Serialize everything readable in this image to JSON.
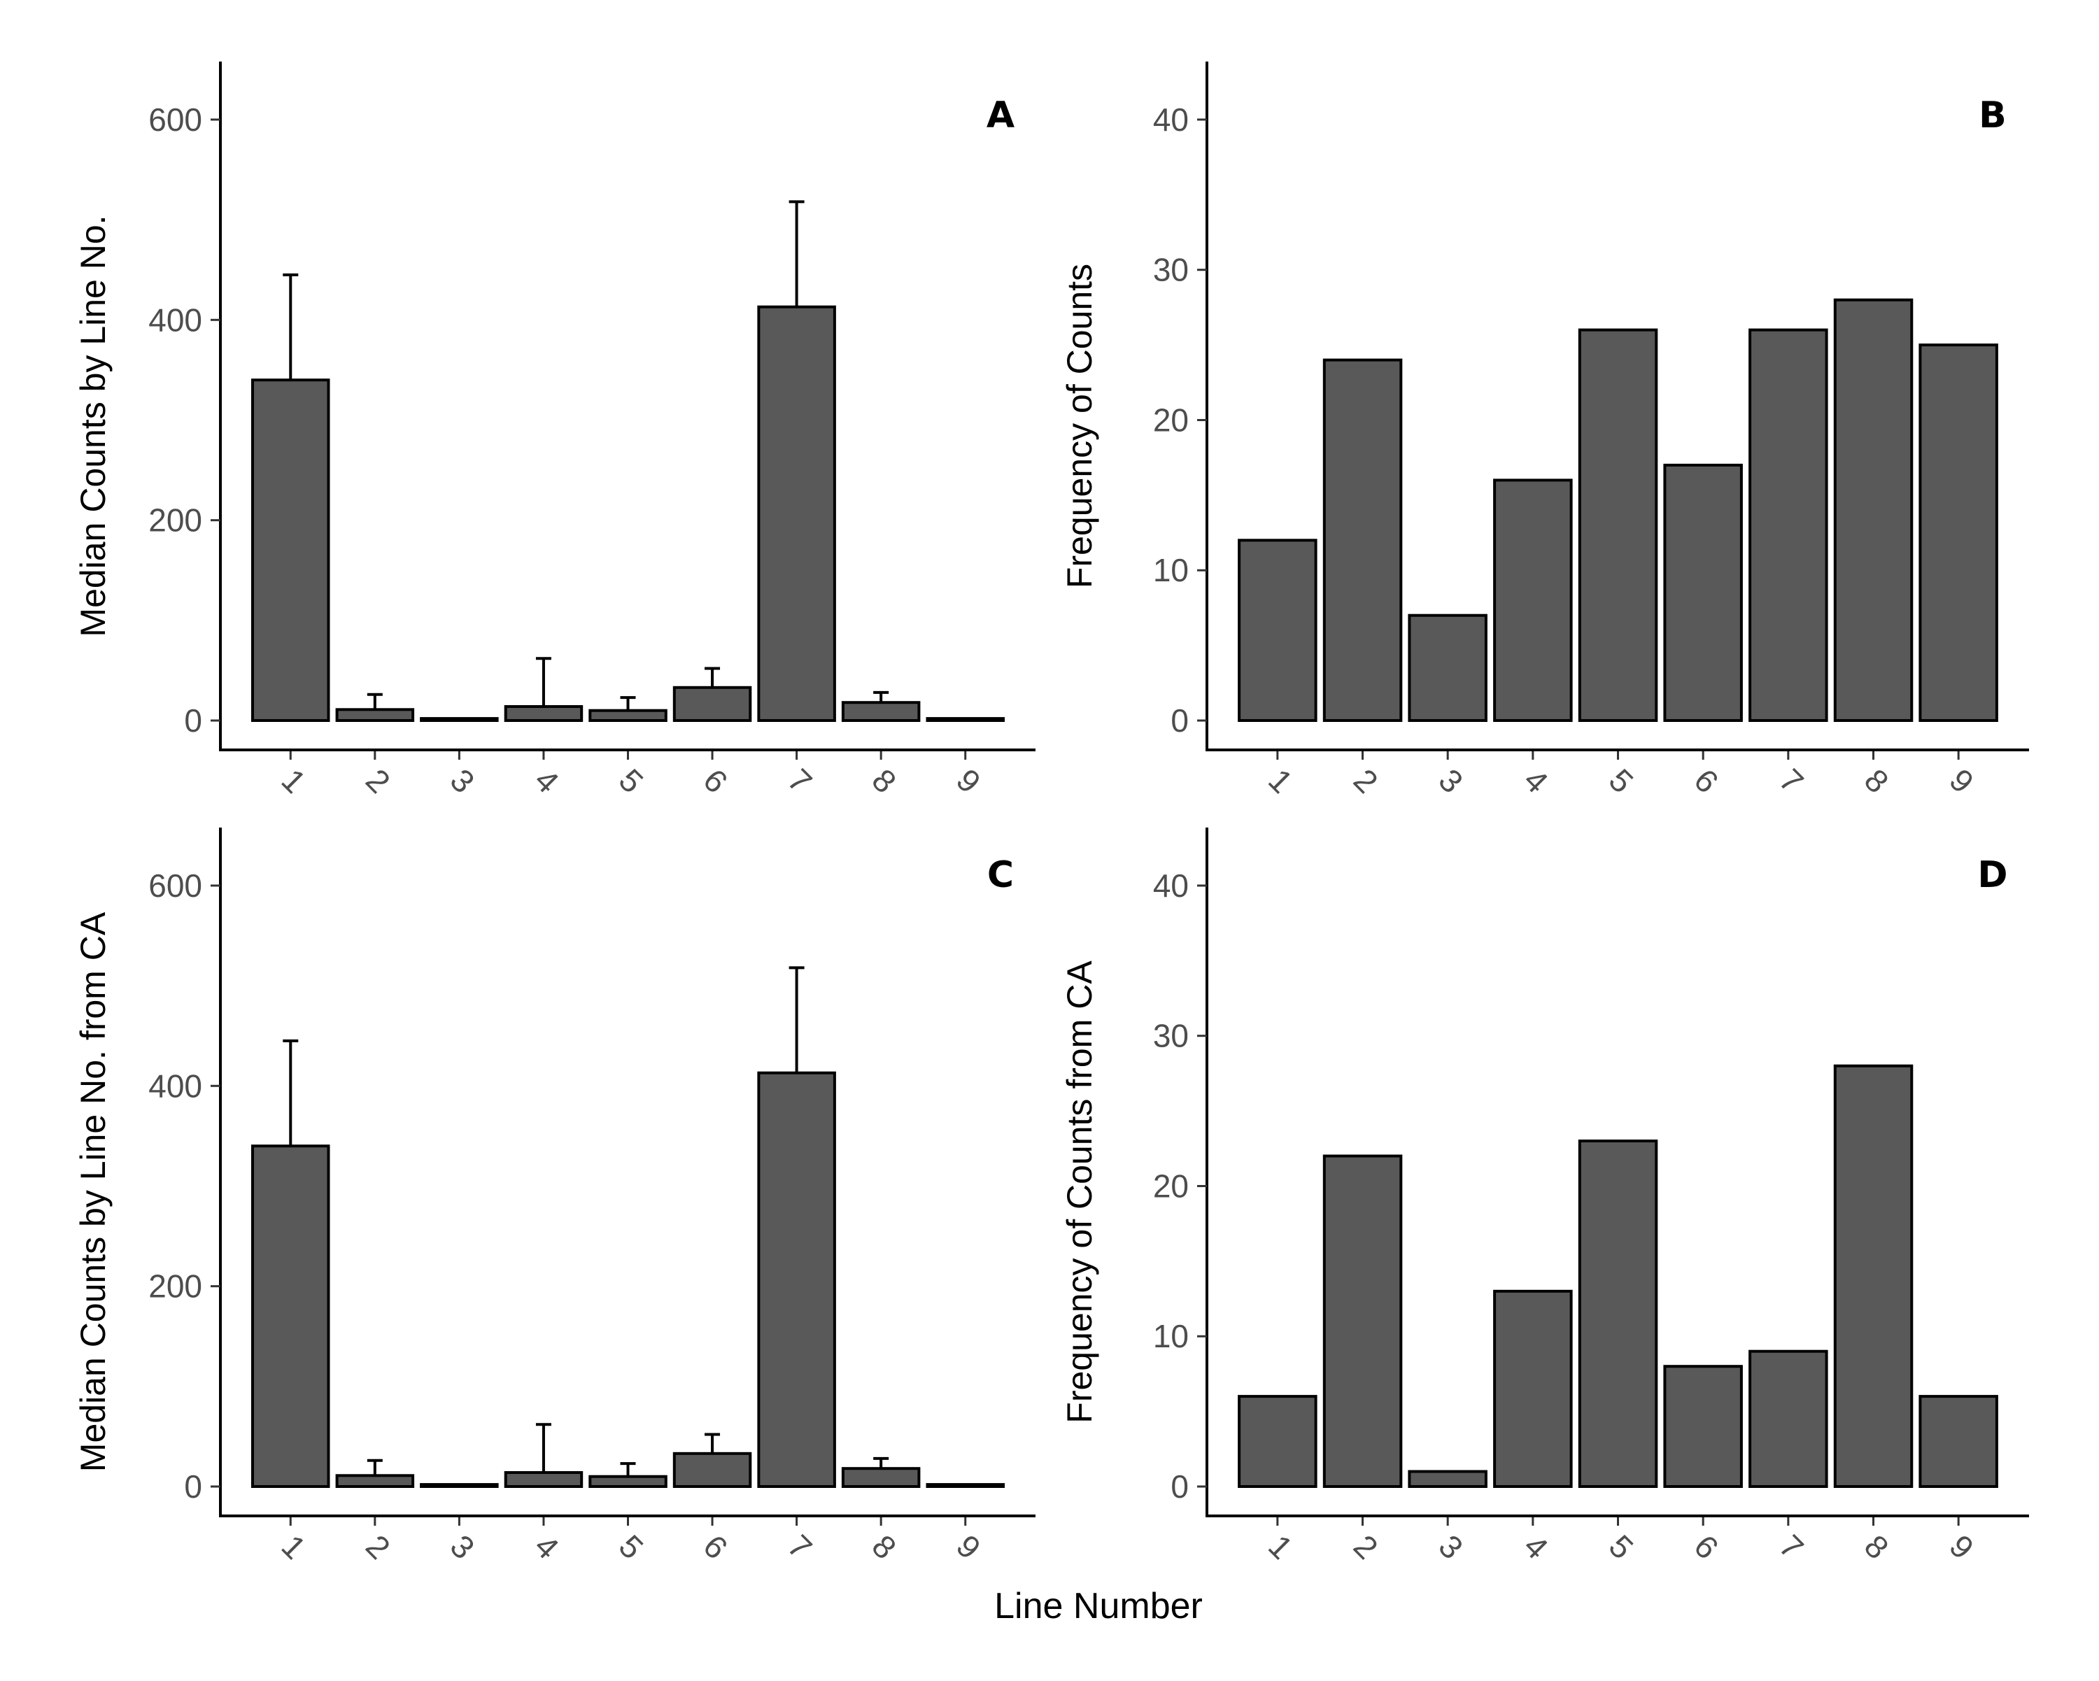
{
  "figure": {
    "xlabel": "Line Number",
    "bar_color": "#595959",
    "outline_color": "#000000"
  },
  "chart_data": [
    {
      "panel": "A",
      "type": "bar",
      "categories": [
        "1",
        "2",
        "3",
        "4",
        "5",
        "6",
        "7",
        "8",
        "9"
      ],
      "values": [
        340,
        11,
        2,
        14,
        10,
        33,
        413,
        18,
        2
      ],
      "error_upper": [
        445,
        26,
        2,
        62,
        23,
        52,
        518,
        28,
        2
      ],
      "ylabel": "Median Counts by Line No.",
      "ylim": [
        0,
        630
      ],
      "yticks": [
        0,
        200,
        400,
        600
      ],
      "grid": false
    },
    {
      "panel": "B",
      "type": "bar",
      "categories": [
        "1",
        "2",
        "3",
        "4",
        "5",
        "6",
        "7",
        "8",
        "9"
      ],
      "values": [
        12,
        24,
        7,
        16,
        26,
        17,
        26,
        28,
        25
      ],
      "ylabel": "Frequency of Counts",
      "ylim": [
        0,
        42
      ],
      "yticks": [
        0,
        10,
        20,
        30,
        40
      ],
      "grid": false
    },
    {
      "panel": "C",
      "type": "bar",
      "categories": [
        "1",
        "2",
        "3",
        "4",
        "5",
        "6",
        "7",
        "8",
        "9"
      ],
      "values": [
        340,
        11,
        2,
        14,
        10,
        33,
        413,
        18,
        2
      ],
      "error_upper": [
        445,
        26,
        2,
        62,
        23,
        52,
        518,
        28,
        2
      ],
      "ylabel": "Median Counts by Line No. from CA",
      "ylim": [
        0,
        630
      ],
      "yticks": [
        0,
        200,
        400,
        600
      ],
      "grid": false
    },
    {
      "panel": "D",
      "type": "bar",
      "categories": [
        "1",
        "2",
        "3",
        "4",
        "5",
        "6",
        "7",
        "8",
        "9"
      ],
      "values": [
        6,
        22,
        1,
        13,
        23,
        8,
        9,
        28,
        6
      ],
      "ylabel": "Frequency of Counts from CA",
      "ylim": [
        0,
        42
      ],
      "yticks": [
        0,
        10,
        20,
        30,
        40
      ],
      "grid": false
    }
  ]
}
